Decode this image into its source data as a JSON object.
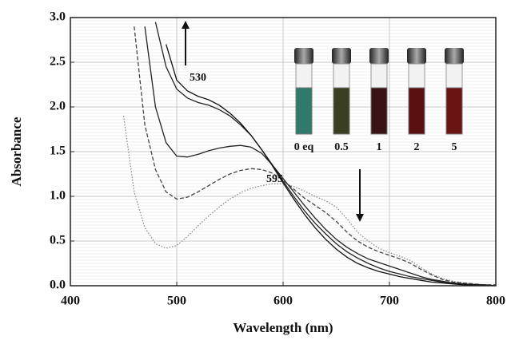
{
  "chart_data": {
    "type": "line",
    "x_label": "Wavelength (nm)",
    "y_label": "Absorbance",
    "x": [
      440,
      450,
      460,
      470,
      480,
      490,
      500,
      510,
      520,
      530,
      540,
      550,
      560,
      570,
      580,
      590,
      600,
      610,
      620,
      630,
      640,
      650,
      660,
      670,
      680,
      690,
      700,
      710,
      720,
      730,
      740,
      750,
      760,
      770,
      780,
      790,
      800
    ],
    "series": [
      {
        "color": "#8a8a8a",
        "dash": "dotted",
        "values": [
          null,
          1.9,
          1.05,
          0.65,
          0.47,
          0.42,
          0.45,
          0.55,
          0.67,
          0.78,
          0.88,
          0.97,
          1.04,
          1.09,
          1.12,
          1.14,
          1.14,
          1.11,
          1.06,
          1.0,
          0.95,
          0.88,
          0.75,
          0.6,
          0.5,
          0.42,
          0.37,
          0.33,
          0.28,
          0.2,
          0.13,
          0.08,
          0.05,
          0.03,
          0.02,
          0.01,
          0.01
        ]
      },
      {
        "color": "#444444",
        "dash": "dashed",
        "values": [
          null,
          null,
          2.9,
          1.8,
          1.3,
          1.05,
          0.97,
          0.99,
          1.05,
          1.12,
          1.19,
          1.25,
          1.29,
          1.31,
          1.3,
          1.26,
          1.18,
          1.08,
          0.98,
          0.9,
          0.82,
          0.72,
          0.6,
          0.5,
          0.43,
          0.38,
          0.34,
          0.3,
          0.25,
          0.18,
          0.12,
          0.07,
          0.04,
          0.03,
          0.02,
          0.01,
          0.01
        ]
      },
      {
        "color": "#222222",
        "dash": "solid",
        "values": [
          null,
          null,
          null,
          2.9,
          2.0,
          1.6,
          1.45,
          1.44,
          1.47,
          1.51,
          1.54,
          1.56,
          1.57,
          1.55,
          1.48,
          1.35,
          1.2,
          1.05,
          0.9,
          0.76,
          0.63,
          0.52,
          0.43,
          0.36,
          0.3,
          0.26,
          0.22,
          0.18,
          0.14,
          0.1,
          0.07,
          0.05,
          0.03,
          0.02,
          0.01,
          0.01,
          0.0
        ]
      },
      {
        "color": "#222222",
        "dash": "solid",
        "values": [
          null,
          null,
          null,
          null,
          2.95,
          2.45,
          2.2,
          2.1,
          2.05,
          2.02,
          1.97,
          1.9,
          1.8,
          1.68,
          1.52,
          1.35,
          1.17,
          1.0,
          0.84,
          0.7,
          0.58,
          0.47,
          0.38,
          0.31,
          0.25,
          0.2,
          0.16,
          0.13,
          0.1,
          0.08,
          0.06,
          0.04,
          0.03,
          0.02,
          0.01,
          0.01,
          0.0
        ]
      },
      {
        "color": "#111111",
        "dash": "solid",
        "values": [
          null,
          null,
          null,
          null,
          null,
          2.7,
          2.3,
          2.18,
          2.12,
          2.08,
          2.02,
          1.93,
          1.82,
          1.68,
          1.52,
          1.34,
          1.15,
          0.97,
          0.8,
          0.65,
          0.52,
          0.41,
          0.32,
          0.25,
          0.2,
          0.16,
          0.13,
          0.1,
          0.08,
          0.06,
          0.04,
          0.03,
          0.02,
          0.01,
          0.01,
          0.0,
          0.0
        ]
      }
    ],
    "xlim": [
      400,
      800
    ],
    "xticks": [
      400,
      500,
      600,
      700,
      800
    ],
    "ylim": [
      0,
      3
    ],
    "yticks": [
      {
        "value": 0,
        "label": "0.0"
      },
      0.5,
      {
        "value": 1,
        "label": "1.0"
      },
      1.5,
      {
        "value": 2,
        "label": "2.0"
      },
      2.5,
      {
        "value": 3,
        "label": "3.0"
      }
    ],
    "grid": true,
    "annotations": [
      "530",
      "595"
    ],
    "vial_labels": [
      "0 eq",
      "0.5",
      "1",
      "2",
      "5"
    ]
  }
}
